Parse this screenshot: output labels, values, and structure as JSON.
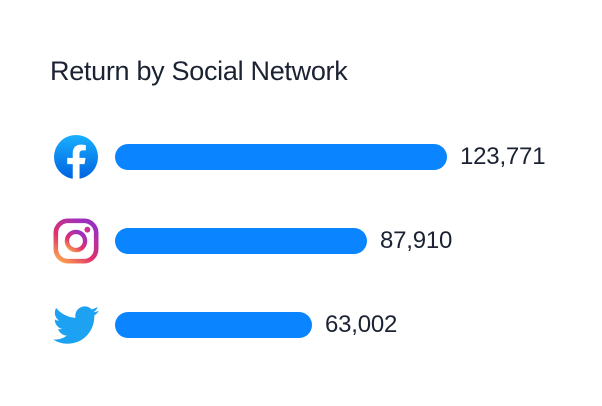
{
  "chart_data": {
    "type": "bar",
    "orientation": "horizontal",
    "title": "Return by Social Network",
    "categories": [
      "Facebook",
      "Instagram",
      "Twitter"
    ],
    "values": [
      123771,
      87910,
      63002
    ],
    "value_labels": [
      "123,771",
      "87,910",
      "63,002"
    ],
    "icons": [
      "facebook-icon",
      "instagram-icon",
      "twitter-icon"
    ],
    "bar_color": "#0A85FF",
    "grid": false,
    "legend_position": "none",
    "value_label_position": "end-of-bar"
  },
  "colors": {
    "background": "#FFFFFF",
    "title_text": "#1B2232",
    "value_text": "#1B2232",
    "bar": "#0A85FF",
    "facebook_gradient_top": "#19AFFF",
    "facebook_gradient_bottom": "#0062E0",
    "twitter_blue": "#1DA1F2",
    "instagram_gradient_orange": "#FDB14D",
    "instagram_gradient_pink": "#E1306C",
    "instagram_gradient_purple": "#9B30BF"
  }
}
